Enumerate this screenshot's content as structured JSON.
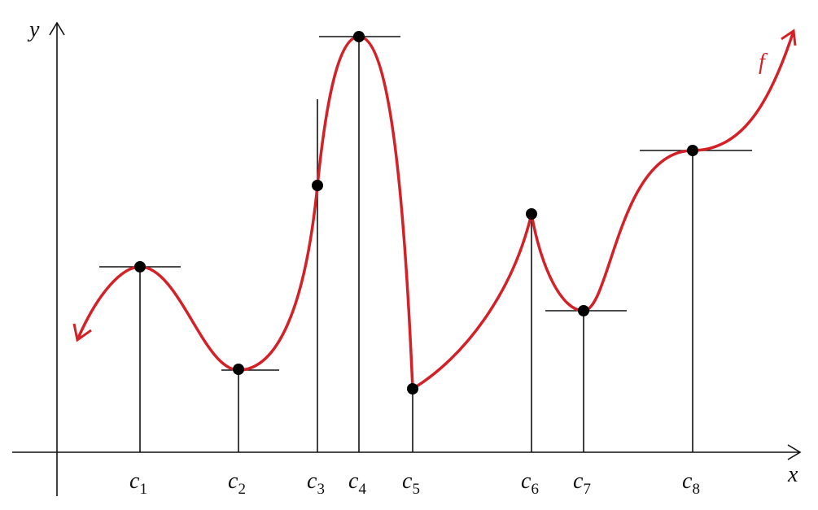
{
  "axes": {
    "y_label": "y",
    "x_label": "x"
  },
  "curve": {
    "label": "f"
  },
  "points": [
    {
      "letter": "c",
      "index": "1"
    },
    {
      "letter": "c",
      "index": "2"
    },
    {
      "letter": "c",
      "index": "3"
    },
    {
      "letter": "c",
      "index": "4"
    },
    {
      "letter": "c",
      "index": "5"
    },
    {
      "letter": "c",
      "index": "6"
    },
    {
      "letter": "c",
      "index": "7"
    },
    {
      "letter": "c",
      "index": "8"
    }
  ]
}
